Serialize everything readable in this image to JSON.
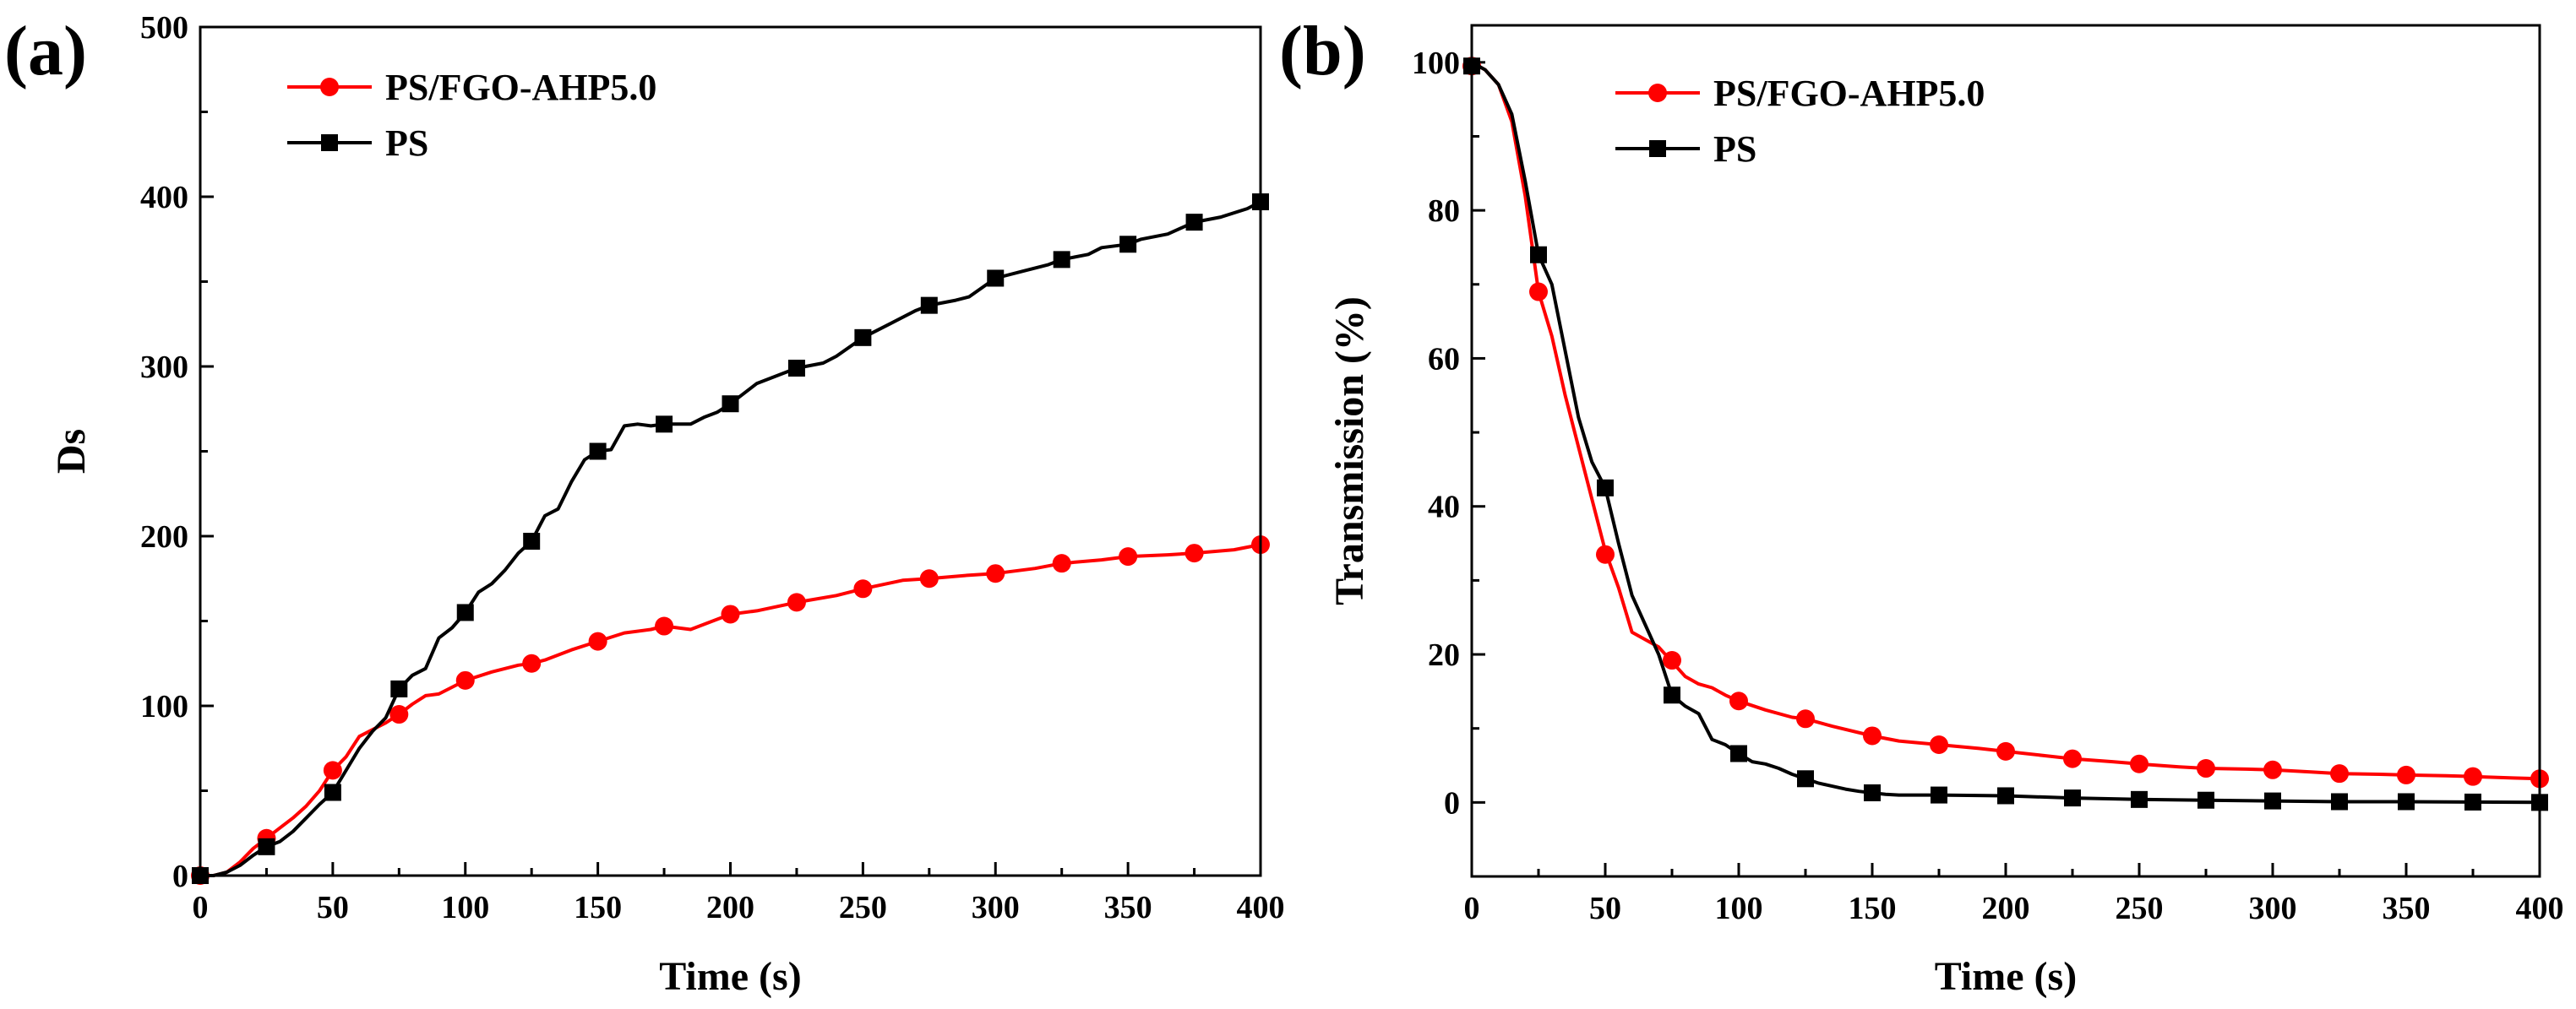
{
  "chart_data": [
    {
      "type": "line",
      "panel_label": "(a)",
      "xlabel": "Time (s)",
      "ylabel": "Ds",
      "xlim": [
        0,
        400
      ],
      "ylim": [
        0,
        500
      ],
      "xticks": [
        0,
        50,
        100,
        150,
        200,
        250,
        300,
        350,
        400
      ],
      "yticks": [
        0,
        100,
        200,
        300,
        400,
        500
      ],
      "legend_position": "top-left",
      "series": [
        {
          "name": "PS/FGO-AHP5.0",
          "color": "#ff0000",
          "marker": "circle",
          "line": [
            [
              0,
              0
            ],
            [
              5,
              0
            ],
            [
              10,
              2
            ],
            [
              15,
              8
            ],
            [
              20,
              16
            ],
            [
              25,
              22
            ],
            [
              30,
              28
            ],
            [
              35,
              34
            ],
            [
              40,
              41
            ],
            [
              45,
              50
            ],
            [
              50,
              62
            ],
            [
              55,
              70
            ],
            [
              60,
              82
            ],
            [
              65,
              86
            ],
            [
              70,
              90
            ],
            [
              75,
              95
            ],
            [
              80,
              101
            ],
            [
              85,
              106
            ],
            [
              90,
              107
            ],
            [
              95,
              111
            ],
            [
              100,
              115
            ],
            [
              110,
              120
            ],
            [
              120,
              124
            ],
            [
              125,
              125
            ],
            [
              130,
              127
            ],
            [
              140,
              133
            ],
            [
              150,
              138
            ],
            [
              160,
              143
            ],
            [
              170,
              145
            ],
            [
              175,
              147
            ],
            [
              185,
              145
            ],
            [
              190,
              148
            ],
            [
              200,
              154
            ],
            [
              210,
              156
            ],
            [
              225,
              161
            ],
            [
              240,
              165
            ],
            [
              250,
              169
            ],
            [
              265,
              174
            ],
            [
              275,
              175
            ],
            [
              290,
              177
            ],
            [
              300,
              178
            ],
            [
              315,
              181
            ],
            [
              325,
              184
            ],
            [
              340,
              186
            ],
            [
              350,
              188
            ],
            [
              365,
              189
            ],
            [
              375,
              190
            ],
            [
              390,
              192
            ],
            [
              400,
              195
            ]
          ],
          "markers_x": [
            0,
            25,
            50,
            75,
            100,
            125,
            150,
            175,
            200,
            225,
            250,
            275,
            300,
            325,
            350,
            375,
            400
          ],
          "markers_y": [
            0,
            22,
            62,
            95,
            115,
            125,
            138,
            147,
            154,
            161,
            169,
            175,
            178,
            184,
            188,
            190,
            195
          ]
        },
        {
          "name": "PS",
          "color": "#000000",
          "marker": "square",
          "line": [
            [
              0,
              0
            ],
            [
              5,
              0
            ],
            [
              10,
              2
            ],
            [
              15,
              6
            ],
            [
              20,
              12
            ],
            [
              25,
              17
            ],
            [
              30,
              20
            ],
            [
              35,
              26
            ],
            [
              40,
              34
            ],
            [
              45,
              42
            ],
            [
              50,
              49
            ],
            [
              55,
              62
            ],
            [
              60,
              75
            ],
            [
              65,
              85
            ],
            [
              70,
              93
            ],
            [
              75,
              110
            ],
            [
              80,
              118
            ],
            [
              85,
              122
            ],
            [
              90,
              140
            ],
            [
              95,
              146
            ],
            [
              100,
              155
            ],
            [
              105,
              167
            ],
            [
              110,
              172
            ],
            [
              115,
              180
            ],
            [
              120,
              190
            ],
            [
              125,
              197
            ],
            [
              130,
              212
            ],
            [
              135,
              216
            ],
            [
              140,
              232
            ],
            [
              145,
              245
            ],
            [
              150,
              250
            ],
            [
              155,
              251
            ],
            [
              160,
              265
            ],
            [
              165,
              266
            ],
            [
              170,
              265
            ],
            [
              175,
              266
            ],
            [
              180,
              266
            ],
            [
              185,
              266
            ],
            [
              190,
              270
            ],
            [
              195,
              273
            ],
            [
              200,
              278
            ],
            [
              210,
              290
            ],
            [
              220,
              296
            ],
            [
              225,
              299
            ],
            [
              235,
              302
            ],
            [
              240,
              306
            ],
            [
              250,
              317
            ],
            [
              260,
              325
            ],
            [
              270,
              333
            ],
            [
              275,
              336
            ],
            [
              285,
              339
            ],
            [
              290,
              341
            ],
            [
              300,
              352
            ],
            [
              310,
              356
            ],
            [
              320,
              360
            ],
            [
              325,
              363
            ],
            [
              335,
              366
            ],
            [
              340,
              370
            ],
            [
              350,
              372
            ],
            [
              355,
              375
            ],
            [
              365,
              378
            ],
            [
              375,
              385
            ],
            [
              385,
              388
            ],
            [
              395,
              393
            ],
            [
              400,
              397
            ]
          ],
          "markers_x": [
            0,
            25,
            50,
            75,
            100,
            125,
            150,
            175,
            200,
            225,
            250,
            275,
            300,
            325,
            350,
            375,
            400
          ],
          "markers_y": [
            0,
            17,
            49,
            110,
            155,
            197,
            250,
            266,
            278,
            299,
            317,
            336,
            352,
            363,
            372,
            385,
            397
          ]
        }
      ]
    },
    {
      "type": "line",
      "panel_label": "(b)",
      "xlabel": "Time (s)",
      "ylabel": "Transmission (%)",
      "xlim": [
        0,
        400
      ],
      "ylim": [
        -10,
        105
      ],
      "xticks": [
        0,
        50,
        100,
        150,
        200,
        250,
        300,
        350,
        400
      ],
      "yticks": [
        0,
        20,
        40,
        60,
        80,
        100
      ],
      "legend_position": "top-left",
      "series": [
        {
          "name": "PS/FGO-AHP5.0",
          "color": "#ff0000",
          "marker": "circle",
          "line": [
            [
              0,
              100
            ],
            [
              5,
              99
            ],
            [
              10,
              97
            ],
            [
              15,
              92
            ],
            [
              20,
              82
            ],
            [
              25,
              69
            ],
            [
              30,
              63
            ],
            [
              35,
              55
            ],
            [
              40,
              48
            ],
            [
              45,
              41
            ],
            [
              50,
              34
            ],
            [
              55,
              29
            ],
            [
              60,
              23
            ],
            [
              65,
              22
            ],
            [
              70,
              21
            ],
            [
              75,
              19
            ],
            [
              80,
              17
            ],
            [
              85,
              16
            ],
            [
              90,
              15.5
            ],
            [
              95,
              14.5
            ],
            [
              100,
              13.7
            ],
            [
              110,
              12.5
            ],
            [
              120,
              11.5
            ],
            [
              125,
              11.3
            ],
            [
              135,
              10.3
            ],
            [
              150,
              9
            ],
            [
              160,
              8.3
            ],
            [
              175,
              7.8
            ],
            [
              190,
              7.3
            ],
            [
              200,
              6.9
            ],
            [
              215,
              6.3
            ],
            [
              225,
              5.9
            ],
            [
              240,
              5.5
            ],
            [
              250,
              5.2
            ],
            [
              265,
              4.8
            ],
            [
              275,
              4.6
            ],
            [
              290,
              4.5
            ],
            [
              300,
              4.4
            ],
            [
              315,
              4.1
            ],
            [
              325,
              3.9
            ],
            [
              340,
              3.8
            ],
            [
              350,
              3.7
            ],
            [
              365,
              3.6
            ],
            [
              375,
              3.5
            ],
            [
              390,
              3.3
            ],
            [
              400,
              3.2
            ]
          ],
          "markers_x": [
            0,
            25,
            50,
            75,
            100,
            125,
            150,
            175,
            200,
            225,
            250,
            275,
            300,
            325,
            350,
            375,
            400
          ],
          "markers_y": [
            99.5,
            69,
            33.5,
            19.2,
            13.7,
            11.3,
            9,
            7.8,
            6.9,
            5.9,
            5.2,
            4.6,
            4.4,
            3.9,
            3.7,
            3.5,
            3.2
          ]
        },
        {
          "name": "PS",
          "color": "#000000",
          "marker": "square",
          "line": [
            [
              0,
              100
            ],
            [
              5,
              99
            ],
            [
              10,
              97
            ],
            [
              15,
              93
            ],
            [
              20,
              84
            ],
            [
              25,
              74
            ],
            [
              30,
              70
            ],
            [
              35,
              61
            ],
            [
              40,
              52
            ],
            [
              45,
              46
            ],
            [
              50,
              42.5
            ],
            [
              55,
              35
            ],
            [
              60,
              28
            ],
            [
              65,
              24
            ],
            [
              70,
              20
            ],
            [
              75,
              14.5
            ],
            [
              80,
              13
            ],
            [
              85,
              12
            ],
            [
              90,
              8.5
            ],
            [
              95,
              7.8
            ],
            [
              100,
              6.6
            ],
            [
              105,
              5.5
            ],
            [
              110,
              5.2
            ],
            [
              115,
              4.6
            ],
            [
              120,
              3.8
            ],
            [
              125,
              3.2
            ],
            [
              130,
              2.6
            ],
            [
              135,
              2.2
            ],
            [
              140,
              1.8
            ],
            [
              145,
              1.5
            ],
            [
              150,
              1.3
            ],
            [
              155,
              1.1
            ],
            [
              160,
              1
            ],
            [
              175,
              1
            ],
            [
              200,
              0.9
            ],
            [
              225,
              0.6
            ],
            [
              250,
              0.4
            ],
            [
              275,
              0.3
            ],
            [
              300,
              0.2
            ],
            [
              325,
              0.1
            ],
            [
              350,
              0.1
            ],
            [
              375,
              0.05
            ],
            [
              400,
              0
            ]
          ],
          "markers_x": [
            0,
            25,
            50,
            75,
            100,
            125,
            150,
            175,
            200,
            225,
            250,
            275,
            300,
            325,
            350,
            375,
            400
          ],
          "markers_y": [
            99.5,
            74,
            42.5,
            14.5,
            6.6,
            3.2,
            1.3,
            1,
            0.9,
            0.6,
            0.4,
            0.3,
            0.2,
            0.1,
            0.1,
            0.05,
            0
          ]
        }
      ]
    }
  ],
  "colors": {
    "red": "#ff0000",
    "black": "#000000"
  }
}
